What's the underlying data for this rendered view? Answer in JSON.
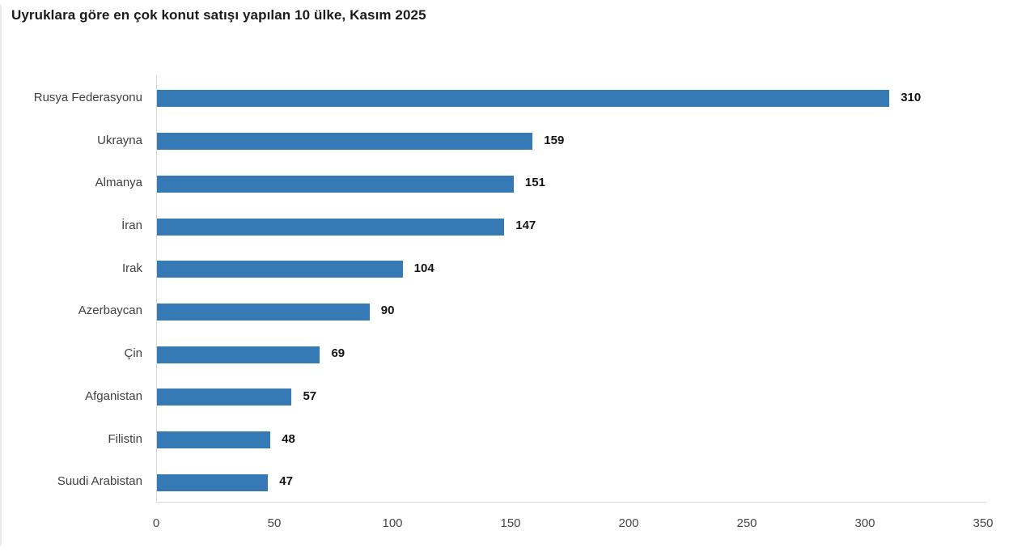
{
  "title": "Uyruklara göre en çok konut satışı yapılan 10 ülke, Kasım 2025",
  "chart_data": {
    "type": "bar",
    "orientation": "horizontal",
    "title": "Uyruklara göre en çok konut satışı yapılan 10 ülke, Kasım 2025",
    "categories": [
      "Rusya Federasyonu",
      "Ukrayna",
      "Almanya",
      "İran",
      "Irak",
      "Azerbaycan",
      "Çin",
      "Afganistan",
      "Filistin",
      "Suudi Arabistan"
    ],
    "values": [
      310,
      159,
      151,
      147,
      104,
      90,
      69,
      57,
      48,
      47
    ],
    "xlabel": "",
    "ylabel": "",
    "xlim": [
      0,
      350
    ],
    "xticks": [
      0,
      50,
      100,
      150,
      200,
      250,
      300,
      350
    ],
    "grid": false,
    "legend": null,
    "value_labels_shown": true,
    "bar_color": "#3579b5",
    "axis_line_color": "#d9d9d9",
    "title_color": "#1b1b1b",
    "category_label_color": "#404040",
    "value_label_color": "#141414",
    "tick_label_color": "#474747"
  }
}
